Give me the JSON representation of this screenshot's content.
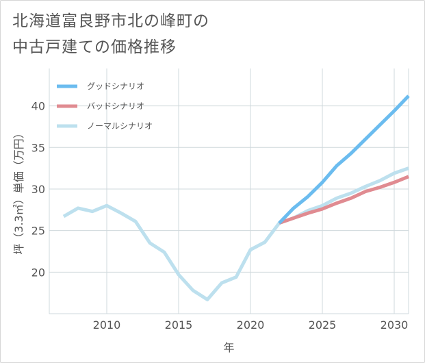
{
  "title_lines": [
    "北海道富良野市北の峰町の",
    "中古戸建ての価格推移"
  ],
  "chart_data": {
    "type": "line",
    "title": "北海道富良野市北の峰町の中古戸建ての価格推移",
    "xlabel": "年",
    "ylabel": "坪（3.3㎡）単価（万円）",
    "xlim": [
      2006,
      2031
    ],
    "ylim": [
      15,
      44.5
    ],
    "xticks": [
      2010,
      2015,
      2020,
      2025,
      2030
    ],
    "yticks": [
      20,
      25,
      30,
      35,
      40
    ],
    "grid": true,
    "legend_position": "top-left",
    "series": [
      {
        "name": "グッドシナリオ",
        "color": "#6bbcef",
        "x": [
          2022,
          2023,
          2024,
          2025,
          2026,
          2027,
          2028,
          2029,
          2030,
          2031
        ],
        "y": [
          25.9,
          27.7,
          29.1,
          30.8,
          32.8,
          34.3,
          36.0,
          37.7,
          39.4,
          41.2
        ]
      },
      {
        "name": "バッドシナリオ",
        "color": "#e08b91",
        "x": [
          2022,
          2023,
          2024,
          2025,
          2026,
          2027,
          2028,
          2029,
          2030,
          2031
        ],
        "y": [
          25.9,
          26.5,
          27.1,
          27.6,
          28.3,
          28.9,
          29.7,
          30.2,
          30.8,
          31.5
        ]
      },
      {
        "name": "ノーマルシナリオ",
        "color": "#bde0ee",
        "x": [
          2007,
          2008,
          2009,
          2010,
          2011,
          2012,
          2013,
          2014,
          2015,
          2016,
          2017,
          2018,
          2019,
          2020,
          2021,
          2022,
          2023,
          2024,
          2025,
          2026,
          2027,
          2028,
          2029,
          2030,
          2031
        ],
        "y": [
          26.7,
          27.7,
          27.3,
          28.0,
          27.1,
          26.1,
          23.5,
          22.4,
          19.7,
          17.8,
          16.7,
          18.7,
          19.4,
          22.7,
          23.6,
          25.9,
          26.5,
          27.4,
          28.0,
          28.9,
          29.5,
          30.3,
          31.0,
          31.9,
          32.5
        ]
      }
    ]
  }
}
